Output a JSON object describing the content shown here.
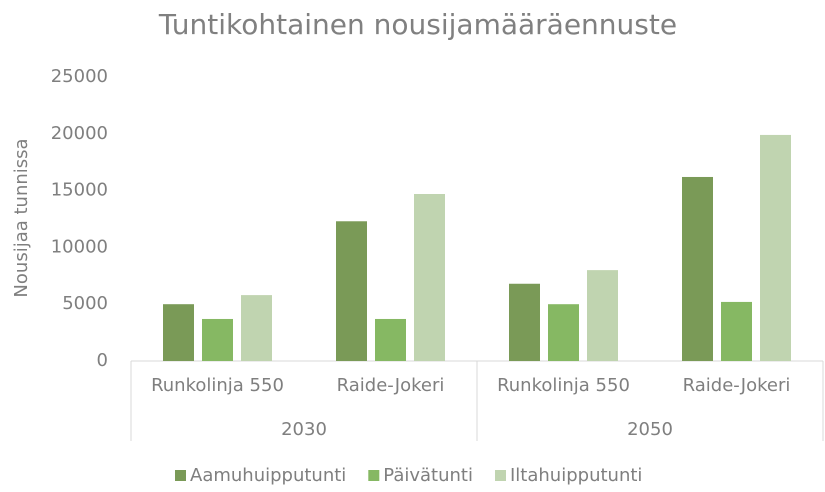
{
  "chart_data": {
    "type": "bar",
    "title": "Tuntikohtainen nousijamääräennuste",
    "y_label": "Nousijaa tunnissa",
    "categories": [
      "Runkolinja 550",
      "Raide-Jokeri",
      "Runkolinja 550",
      "Raide-Jokeri"
    ],
    "groups": [
      "2030",
      "2050"
    ],
    "series": [
      {
        "name": "Aamuhuipputunti",
        "color": "#7a9a57",
        "values": [
          5000,
          12300,
          6800,
          16200
        ]
      },
      {
        "name": "Päivätunti",
        "color": "#86b863",
        "values": [
          3700,
          3700,
          5000,
          5200
        ]
      },
      {
        "name": "Iltahuipputunti",
        "color": "#c0d4b0",
        "values": [
          5800,
          14700,
          8000,
          19900
        ]
      }
    ],
    "ylim": [
      0,
      25000
    ],
    "yticks": [
      0,
      5000,
      10000,
      15000,
      20000,
      25000
    ],
    "grid": false,
    "legend": "bottom"
  }
}
